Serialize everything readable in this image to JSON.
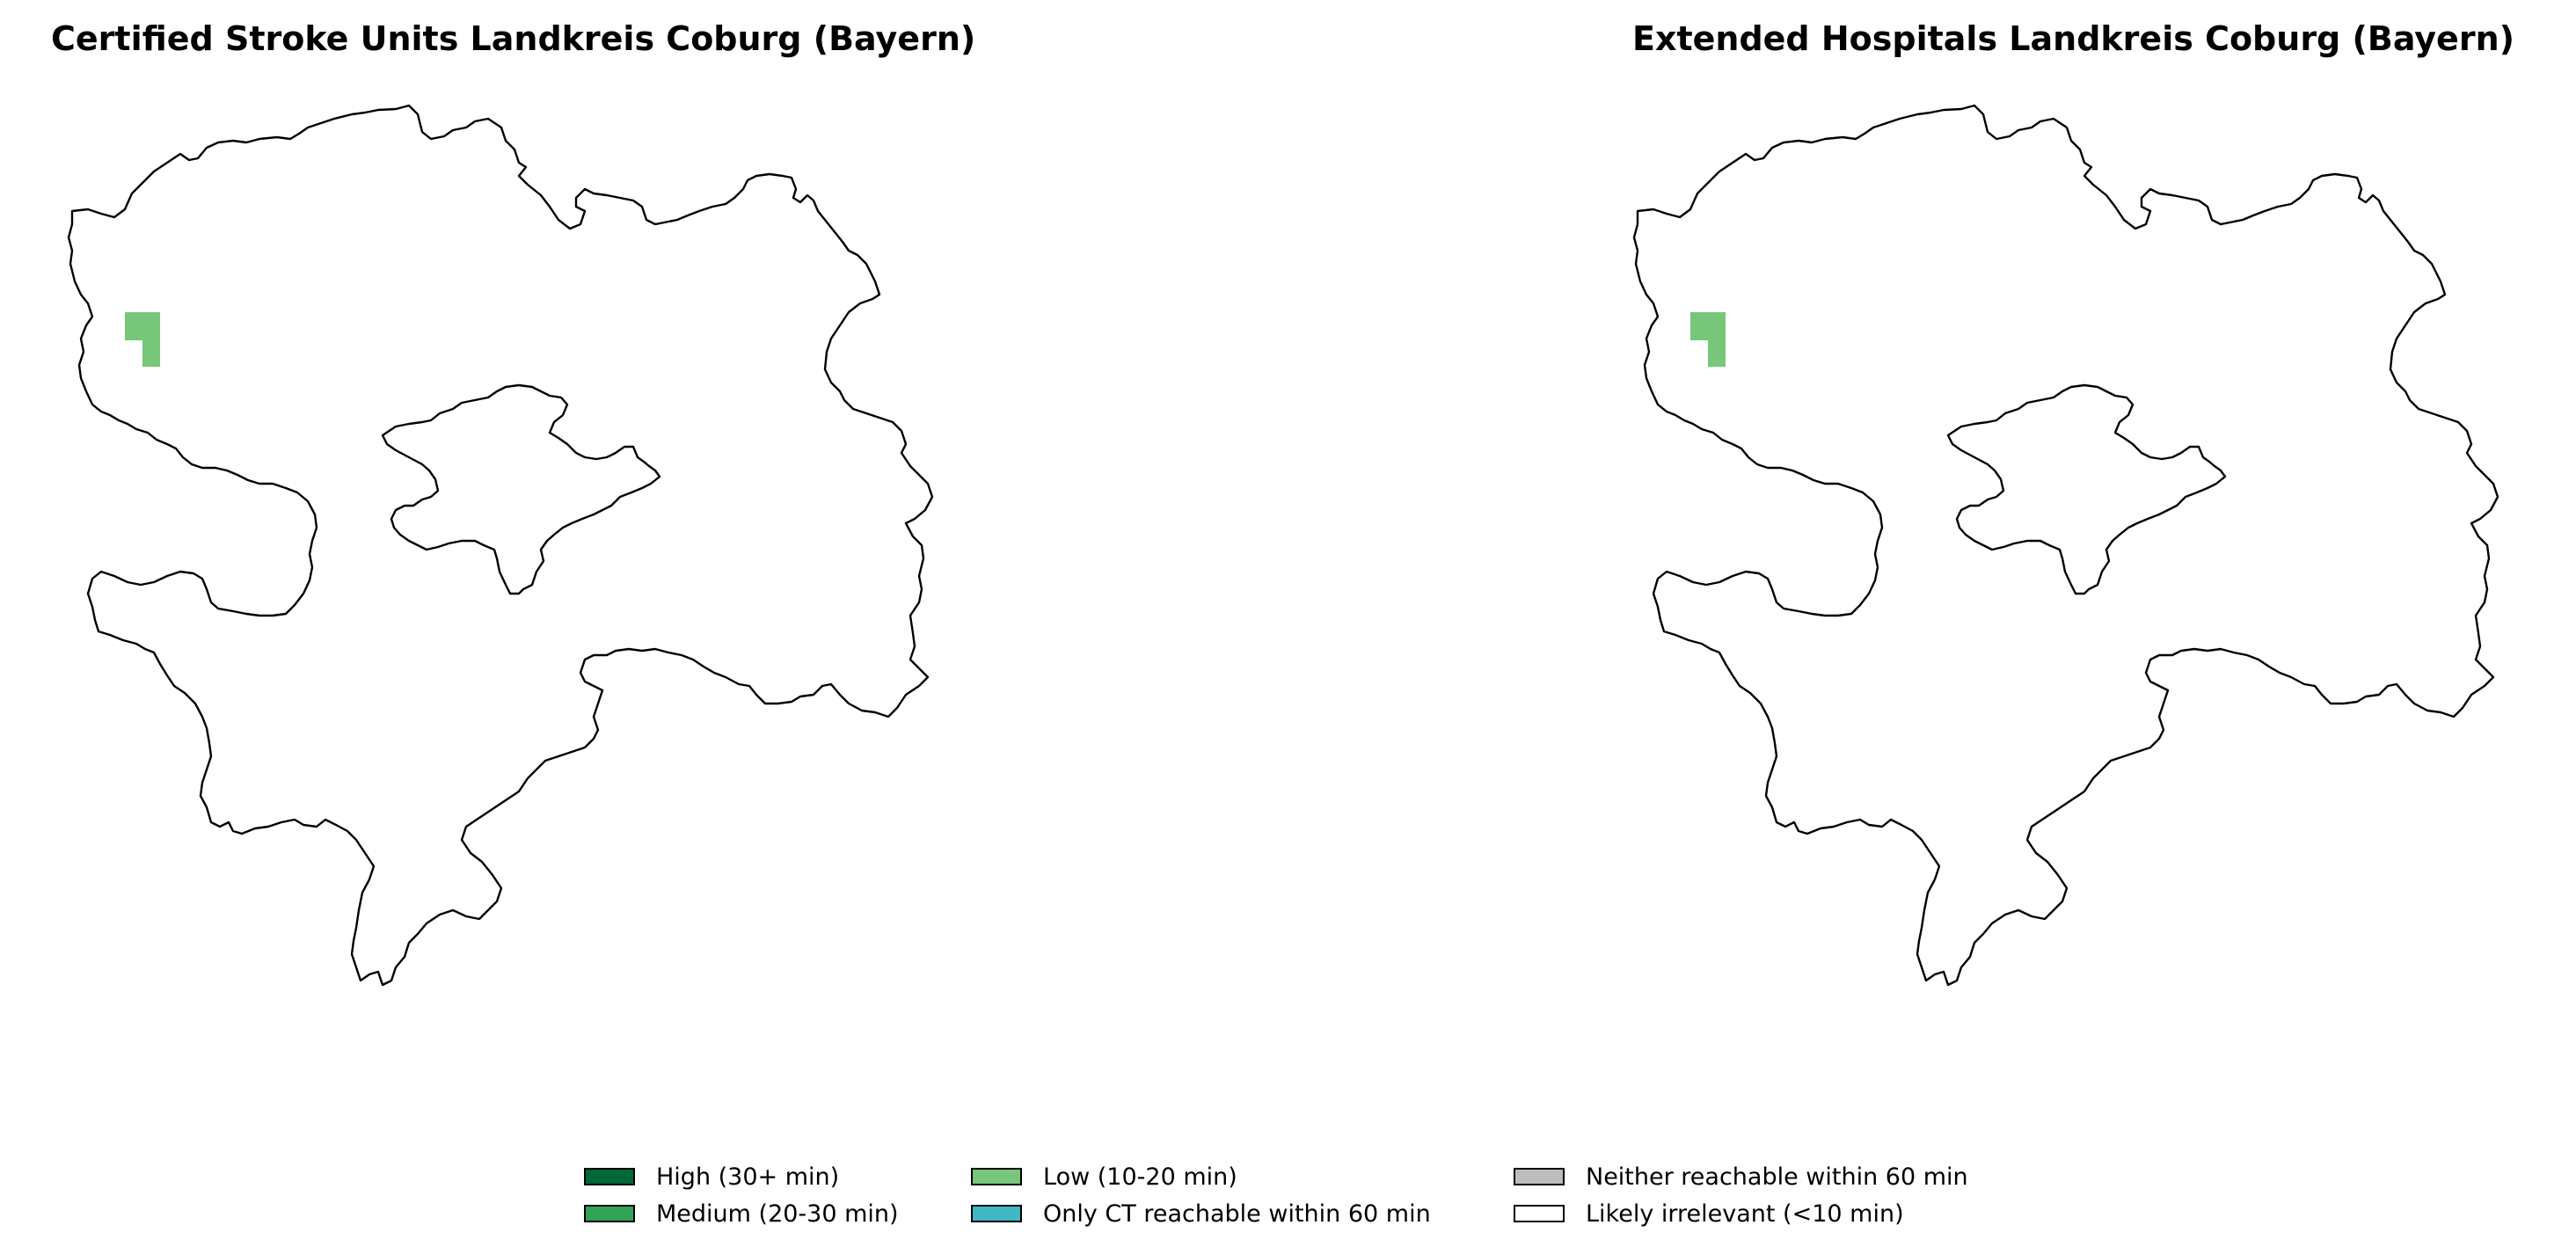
{
  "maps": [
    {
      "title": "Certified Stroke Units Landkreis Coburg (Bayern)",
      "highlighted_category": "Low (10-20 min)"
    },
    {
      "title": "Extended Hospitals Landkreis Coburg (Bayern)",
      "highlighted_category": "Low (10-20 min)"
    }
  ],
  "legend": {
    "items": [
      {
        "label": "High (30+ min)",
        "color": "#006837"
      },
      {
        "label": "Medium (20-30 min)",
        "color": "#31a354"
      },
      {
        "label": "Low (10-20 min)",
        "color": "#78c679"
      },
      {
        "label": "Only CT reachable within 60 min",
        "color": "#41b6c4"
      },
      {
        "label": "Neither reachable within 60 min",
        "color": "#bdbdbd"
      },
      {
        "label": "Likely irrelevant (<10 min)",
        "color": "#ffffff"
      }
    ]
  },
  "colors": {
    "outline": "#000000",
    "background": "#ffffff"
  }
}
